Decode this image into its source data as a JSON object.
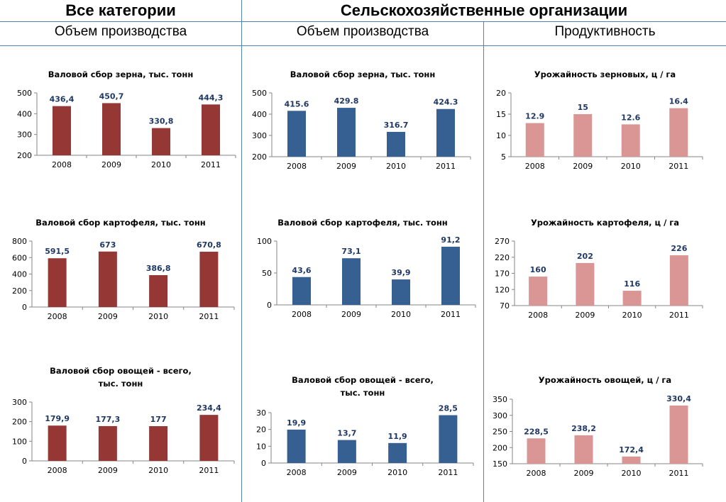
{
  "headers": {
    "all_categories": "Все категории",
    "agri_orgs": "Сельскохозяйственные организации",
    "volume_left": "Объем производства",
    "volume_mid": "Объем производства",
    "productivity": "Продуктивность"
  },
  "colors": {
    "red": "#953735",
    "blue": "#376092",
    "pink": "#d99694",
    "rule": "#4f81bd",
    "label": "#1f3864"
  },
  "chart_data": [
    {
      "type": "bar",
      "title": "Валовой сбор зерна, тыс. тонн",
      "categories": [
        "2008",
        "2009",
        "2010",
        "2011"
      ],
      "values": [
        436.4,
        450.7,
        330.8,
        444.3
      ],
      "labels": [
        "436,4",
        "450,7",
        "330,8",
        "444,3"
      ],
      "ylim": [
        200,
        500
      ],
      "yticks": [
        200,
        300,
        400,
        500
      ],
      "ytick_labels": [
        "200",
        "300",
        "400",
        "500"
      ],
      "color": "red"
    },
    {
      "type": "bar",
      "title": "Валовой сбор зерна, тыс. тонн",
      "categories": [
        "2008",
        "2009",
        "2010",
        "2011"
      ],
      "values": [
        415.6,
        429.8,
        316.7,
        424.3
      ],
      "labels": [
        "415.6",
        "429.8",
        "316.7",
        "424.3"
      ],
      "ylim": [
        200,
        500
      ],
      "yticks": [
        200,
        300,
        400,
        500
      ],
      "ytick_labels": [
        "200",
        "300",
        "400",
        "500"
      ],
      "color": "blue"
    },
    {
      "type": "bar",
      "title": "Урожайность зерновых, ц / га",
      "categories": [
        "2008",
        "2009",
        "2010",
        "2011"
      ],
      "values": [
        12.9,
        15,
        12.6,
        16.4
      ],
      "labels": [
        "12.9",
        "15",
        "12.6",
        "16.4"
      ],
      "ylim": [
        5,
        20
      ],
      "yticks": [
        5,
        10,
        15,
        20
      ],
      "ytick_labels": [
        "5",
        "10",
        "15",
        "20"
      ],
      "color": "pink"
    },
    {
      "type": "bar",
      "title": "Валовой сбор картофеля, тыс. тонн",
      "categories": [
        "2008",
        "2009",
        "2010",
        "2011"
      ],
      "values": [
        591.5,
        673,
        386.8,
        670.8
      ],
      "labels": [
        "591,5",
        "673",
        "386,8",
        "670,8"
      ],
      "ylim": [
        0,
        800
      ],
      "yticks": [
        0,
        200,
        400,
        600,
        800
      ],
      "ytick_labels": [
        "0",
        "200",
        "400",
        "600",
        "800"
      ],
      "color": "red"
    },
    {
      "type": "bar",
      "title": "Валовой сбор картофеля, тыс. тонн",
      "categories": [
        "2008",
        "2009",
        "2010",
        "2011"
      ],
      "values": [
        43.6,
        73.1,
        39.9,
        91.2
      ],
      "labels": [
        "43,6",
        "73,1",
        "39,9",
        "91,2"
      ],
      "ylim": [
        0,
        100
      ],
      "yticks": [
        0,
        50,
        100
      ],
      "ytick_labels": [
        "0",
        "50",
        "100"
      ],
      "color": "blue"
    },
    {
      "type": "bar",
      "title": "Урожайность картофеля, ц / га",
      "categories": [
        "2008",
        "2009",
        "2010",
        "2011"
      ],
      "values": [
        160,
        202,
        116,
        226
      ],
      "labels": [
        "160",
        "202",
        "116",
        "226"
      ],
      "ylim": [
        70,
        270
      ],
      "yticks": [
        70,
        120,
        170,
        220,
        270
      ],
      "ytick_labels": [
        "70",
        "120",
        "170",
        "220",
        "270"
      ],
      "color": "pink"
    },
    {
      "type": "bar",
      "title": "Валовой сбор овощей - всего, тыс. тонн",
      "categories": [
        "2008",
        "2009",
        "2010",
        "2011"
      ],
      "values": [
        179.9,
        177.3,
        177,
        234.4
      ],
      "labels": [
        "179,9",
        "177,3",
        "177",
        "234,4"
      ],
      "ylim": [
        0,
        300
      ],
      "yticks": [
        0,
        100,
        200,
        300
      ],
      "ytick_labels": [
        "0",
        "100",
        "200",
        "300"
      ],
      "color": "red"
    },
    {
      "type": "bar",
      "title": "Валовой сбор овощей - всего, тыс. тонн",
      "categories": [
        "2008",
        "2009",
        "2010",
        "2011"
      ],
      "values": [
        19.9,
        13.7,
        11.9,
        28.5
      ],
      "labels": [
        "19,9",
        "13,7",
        "11,9",
        "28,5"
      ],
      "ylim": [
        0,
        30
      ],
      "yticks": [
        0,
        10,
        20,
        30
      ],
      "ytick_labels": [
        "0",
        "10",
        "20",
        "30"
      ],
      "color": "blue"
    },
    {
      "type": "bar",
      "title": "Урожайность овощей, ц / га",
      "categories": [
        "2008",
        "2009",
        "2010",
        "2011"
      ],
      "values": [
        228.5,
        238.2,
        172.4,
        330.4
      ],
      "labels": [
        "228,5",
        "238,2",
        "172,4",
        "330,4"
      ],
      "ylim": [
        150,
        350
      ],
      "yticks": [
        150,
        200,
        250,
        300,
        350
      ],
      "ytick_labels": [
        "150",
        "200",
        "250",
        "300",
        "350"
      ],
      "color": "pink"
    }
  ]
}
